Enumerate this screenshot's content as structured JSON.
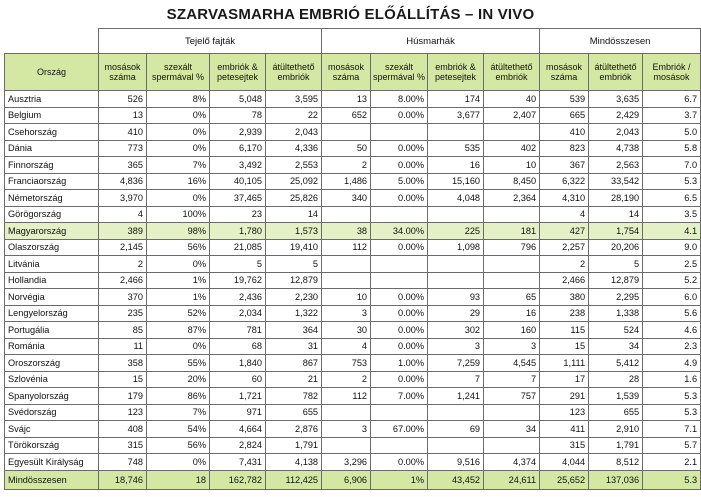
{
  "title": "SZARVASMARHA EMBRIÓ ELŐÁLLÍTÁS – IN VIVO",
  "groups": [
    "Tejelő fajták",
    "Húsmarhák",
    "Mindösszesen"
  ],
  "columns": [
    "Ország",
    "mosások száma",
    "szexált spermával %",
    "embriók & petesejtek",
    "átültethető embriók",
    "mosások száma",
    "szexált spermával %",
    "embriók & petesejtek",
    "átültethető embriók",
    "mosások száma",
    "átültethető embriók",
    "Embriók / mosások"
  ],
  "rows": [
    [
      "Ausztria",
      "526",
      "8%",
      "5,048",
      "3,595",
      "13",
      "8.00%",
      "174",
      "40",
      "539",
      "3,635",
      "6.7"
    ],
    [
      "Belgium",
      "13",
      "0%",
      "78",
      "22",
      "652",
      "0.00%",
      "3,677",
      "2,407",
      "665",
      "2,429",
      "3.7"
    ],
    [
      "Csehország",
      "410",
      "0%",
      "2,939",
      "2,043",
      "",
      "",
      "",
      "",
      "410",
      "2,043",
      "5.0"
    ],
    [
      "Dánia",
      "773",
      "0%",
      "6,170",
      "4,336",
      "50",
      "0.00%",
      "535",
      "402",
      "823",
      "4,738",
      "5.8"
    ],
    [
      "Finnország",
      "365",
      "7%",
      "3,492",
      "2,553",
      "2",
      "0.00%",
      "16",
      "10",
      "367",
      "2,563",
      "7.0"
    ],
    [
      "Franciaország",
      "4,836",
      "16%",
      "40,105",
      "25,092",
      "1,486",
      "5.00%",
      "15,160",
      "8,450",
      "6,322",
      "33,542",
      "5.3"
    ],
    [
      "Németország",
      "3,970",
      "0%",
      "37,465",
      "25,826",
      "340",
      "0.00%",
      "4,048",
      "2,364",
      "4,310",
      "28,190",
      "6.5"
    ],
    [
      "Görögország",
      "4",
      "100%",
      "23",
      "14",
      "",
      "",
      "",
      "",
      "4",
      "14",
      "3.5"
    ],
    [
      "Magyarország",
      "389",
      "98%",
      "1,780",
      "1,573",
      "38",
      "34.00%",
      "225",
      "181",
      "427",
      "1,754",
      "4.1"
    ],
    [
      "Olaszország",
      "2,145",
      "56%",
      "21,085",
      "19,410",
      "112",
      "0.00%",
      "1,098",
      "796",
      "2,257",
      "20,206",
      "9.0"
    ],
    [
      "Litvánia",
      "2",
      "0%",
      "5",
      "5",
      "",
      "",
      "",
      "",
      "2",
      "5",
      "2.5"
    ],
    [
      "Hollandia",
      "2,466",
      "1%",
      "19,762",
      "12,879",
      "",
      "",
      "",
      "",
      "2,466",
      "12,879",
      "5.2"
    ],
    [
      "Norvégia",
      "370",
      "1%",
      "2,436",
      "2,230",
      "10",
      "0.00%",
      "93",
      "65",
      "380",
      "2,295",
      "6.0"
    ],
    [
      "Lengyelország",
      "235",
      "52%",
      "2,034",
      "1,322",
      "3",
      "0.00%",
      "29",
      "16",
      "238",
      "1,338",
      "5.6"
    ],
    [
      "Portugália",
      "85",
      "87%",
      "781",
      "364",
      "30",
      "0.00%",
      "302",
      "160",
      "115",
      "524",
      "4.6"
    ],
    [
      "Románia",
      "11",
      "0%",
      "68",
      "31",
      "4",
      "0.00%",
      "3",
      "3",
      "15",
      "34",
      "2.3"
    ],
    [
      "Oroszország",
      "358",
      "55%",
      "1,840",
      "867",
      "753",
      "1.00%",
      "7,259",
      "4,545",
      "1,111",
      "5,412",
      "4.9"
    ],
    [
      "Szlovénia",
      "15",
      "20%",
      "60",
      "21",
      "2",
      "0.00%",
      "7",
      "7",
      "17",
      "28",
      "1.6"
    ],
    [
      "Spanyolország",
      "179",
      "86%",
      "1,721",
      "782",
      "112",
      "7.00%",
      "1,241",
      "757",
      "291",
      "1,539",
      "5.3"
    ],
    [
      "Svédország",
      "123",
      "7%",
      "971",
      "655",
      "",
      "",
      "",
      "",
      "123",
      "655",
      "5.3"
    ],
    [
      "Svájc",
      "408",
      "54%",
      "4,664",
      "2,876",
      "3",
      "67.00%",
      "69",
      "34",
      "411",
      "2,910",
      "7.1"
    ],
    [
      "Törökország",
      "315",
      "56%",
      "2,824",
      "1,791",
      "",
      "",
      "",
      "",
      "315",
      "1,791",
      "5.7"
    ],
    [
      "Egyesült Királyság",
      "748",
      "0%",
      "7,431",
      "4,138",
      "3,296",
      "0.00%",
      "9,516",
      "4,374",
      "4,044",
      "8,512",
      "2.1"
    ]
  ],
  "highlight_row": "Magyarország",
  "total": [
    "Mindösszesen",
    "18,746",
    "18",
    "162,782",
    "112,425",
    "6,906",
    "1%",
    "43,452",
    "24,611",
    "25,652",
    "137,036",
    "5.3"
  ]
}
